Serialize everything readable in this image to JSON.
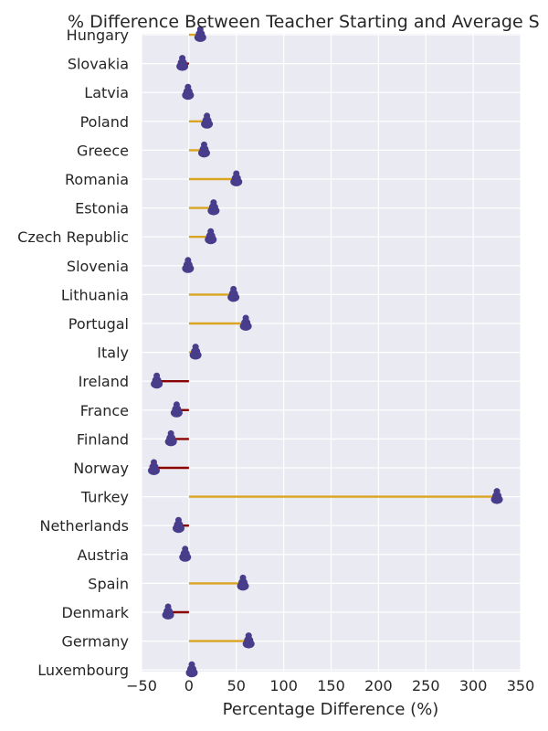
{
  "chart_data": {
    "type": "dot-line",
    "title": "% Difference Between Teacher Starting and Average S",
    "xlabel": "Percentage Difference (%)",
    "xlim": [
      -50,
      350
    ],
    "xticks": [
      "−50",
      "0",
      "50",
      "100",
      "150",
      "200",
      "250",
      "300",
      "350"
    ],
    "xtick_values": [
      -50,
      0,
      50,
      100,
      150,
      200,
      250,
      300,
      350
    ],
    "grid": true,
    "colors": {
      "background": "#EAEAF2",
      "grid": "#FFFFFF",
      "positive_line": "#DAA520",
      "negative_line": "#8B0000",
      "marker": "#483D8B"
    },
    "categories": [
      "Hungary",
      "Slovakia",
      "Latvia",
      "Poland",
      "Greece",
      "Romania",
      "Estonia",
      "Czech Republic",
      "Slovenia",
      "Lithuania",
      "Portugal",
      "Italy",
      "Ireland",
      "France",
      "Finland",
      "Norway",
      "Turkey",
      "Netherlands",
      "Austria",
      "Spain",
      "Denmark",
      "Germany",
      "Luxembourg"
    ],
    "values": [
      12,
      -7,
      -1,
      19,
      16,
      50,
      26,
      23,
      -1,
      47,
      60,
      7,
      -34,
      -13,
      -19,
      -37,
      325,
      -11,
      -4,
      57,
      -22,
      63,
      3
    ]
  }
}
